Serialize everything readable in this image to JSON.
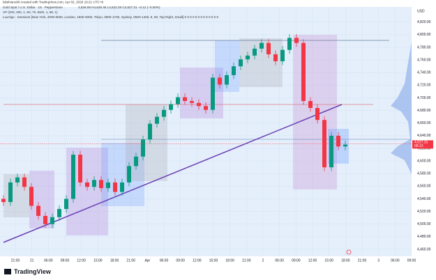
{
  "chart_data": {
    "type": "candlestick",
    "attribution": "bdsilvano96 created with TradingView.com, Apr 02, 2026 19:21 UTC+8",
    "title": "Gold Spot / U.S. Dollar · 15 · Pepperstone",
    "ohlc_summary": "4,628.08 H4,628.45 L4,622.29 C4,627.31 −0.12 (−0.00%)",
    "indicators": [
      "VP (200, 200, 1, 60, 70, Both, 1, 68, 1)",
      "LuxAlgo - Sessions [New York, 2000-0500, London, 1500-0000, Tokyo, 0800-1700, Sydney, 0500-1400, 8, 90, Top Right, Small]  0  0  0  0  0  0  0  0  0  0  0  0  0"
    ],
    "currency": "USD",
    "brand": "TradingView",
    "open": [
      4540,
      4535,
      4566,
      4574,
      4559,
      4529,
      4513,
      4500,
      4511,
      4524,
      4540,
      4610,
      4566,
      4559,
      4570,
      4557,
      4566,
      4551,
      4566,
      4592,
      4607,
      4634,
      4659,
      4670,
      4681,
      4690,
      4701,
      4695,
      4692,
      4687,
      4681,
      4732,
      4721,
      4736,
      4750,
      4761,
      4767,
      4778,
      4787,
      4769,
      4758,
      4776,
      4795,
      4787,
      4695,
      4684,
      4665,
      4590,
      4640,
      4623
    ],
    "high": [
      4546,
      4572,
      4580,
      4580,
      4565,
      4535,
      4519,
      4517,
      4530,
      4546,
      4616,
      4616,
      4572,
      4576,
      4576,
      4572,
      4572,
      4572,
      4598,
      4613,
      4640,
      4665,
      4676,
      4687,
      4696,
      4707,
      4707,
      4701,
      4698,
      4693,
      4738,
      4738,
      4742,
      4756,
      4767,
      4773,
      4784,
      4793,
      4793,
      4775,
      4782,
      4801,
      4801,
      4793,
      4701,
      4690,
      4671,
      4646,
      4646,
      4632
    ],
    "low": [
      4529,
      4529,
      4560,
      4553,
      4523,
      4507,
      4494,
      4494,
      4505,
      4518,
      4534,
      4560,
      4553,
      4553,
      4551,
      4551,
      4545,
      4545,
      4560,
      4586,
      4601,
      4628,
      4653,
      4664,
      4675,
      4684,
      4689,
      4686,
      4681,
      4675,
      4675,
      4715,
      4715,
      4730,
      4744,
      4755,
      4761,
      4772,
      4763,
      4752,
      4752,
      4770,
      4781,
      4689,
      4678,
      4659,
      4584,
      4584,
      4617,
      4617
    ],
    "close": [
      4535,
      4566,
      4574,
      4559,
      4529,
      4513,
      4500,
      4511,
      4524,
      4540,
      4610,
      4566,
      4559,
      4570,
      4557,
      4566,
      4551,
      4566,
      4592,
      4607,
      4634,
      4659,
      4670,
      4681,
      4690,
      4701,
      4695,
      4692,
      4687,
      4681,
      4732,
      4721,
      4736,
      4750,
      4761,
      4767,
      4778,
      4787,
      4769,
      4758,
      4776,
      4795,
      4787,
      4695,
      4684,
      4665,
      4590,
      4640,
      4623,
      4626
    ],
    "up_color": "#089981",
    "down_color": "#f23645",
    "categories": [
      "21:00",
      "21",
      "06:00",
      "09:00",
      "12:00",
      "15:00",
      "18:00",
      "21:00",
      "Apr",
      "06:00",
      "09:00",
      "12:00",
      "15:00",
      "18:00",
      "21:00",
      "2",
      "06:00",
      "09:00",
      "12:00",
      "15:00",
      "18:00",
      "21:00",
      "3",
      "06:00",
      "09:00"
    ],
    "ylim": [
      4449,
      4844
    ],
    "yticks": [
      {
        "value": 4460,
        "label": "4,460.00"
      },
      {
        "value": 4480,
        "label": "4,480.00"
      },
      {
        "value": 4500,
        "label": "4,500.00"
      },
      {
        "value": 4520,
        "label": "4,520.00"
      },
      {
        "value": 4540,
        "label": "4,540.00"
      },
      {
        "value": 4560,
        "label": "4,560.00"
      },
      {
        "value": 4580,
        "label": "4,580.00"
      },
      {
        "value": 4600,
        "label": "4,600.00"
      },
      {
        "value": 4620,
        "label": "4,620.00"
      },
      {
        "value": 4640,
        "label": "4,640.00"
      },
      {
        "value": 4660,
        "label": "4,660.00"
      },
      {
        "value": 4680,
        "label": "4,680.00"
      },
      {
        "value": 4700,
        "label": "4,700.00"
      },
      {
        "value": 4720,
        "label": "4,720.00"
      },
      {
        "value": 4740,
        "label": "4,740.00"
      },
      {
        "value": 4760,
        "label": "4,760.00"
      },
      {
        "value": 4780,
        "label": "4,780.00"
      },
      {
        "value": 4800,
        "label": "4,800.00"
      },
      {
        "value": 4820,
        "label": "4,820.00"
      }
    ],
    "last_price": {
      "value": 4627.31,
      "label": "4,627.31"
    },
    "countdown": "09:13",
    "grid": true
  }
}
